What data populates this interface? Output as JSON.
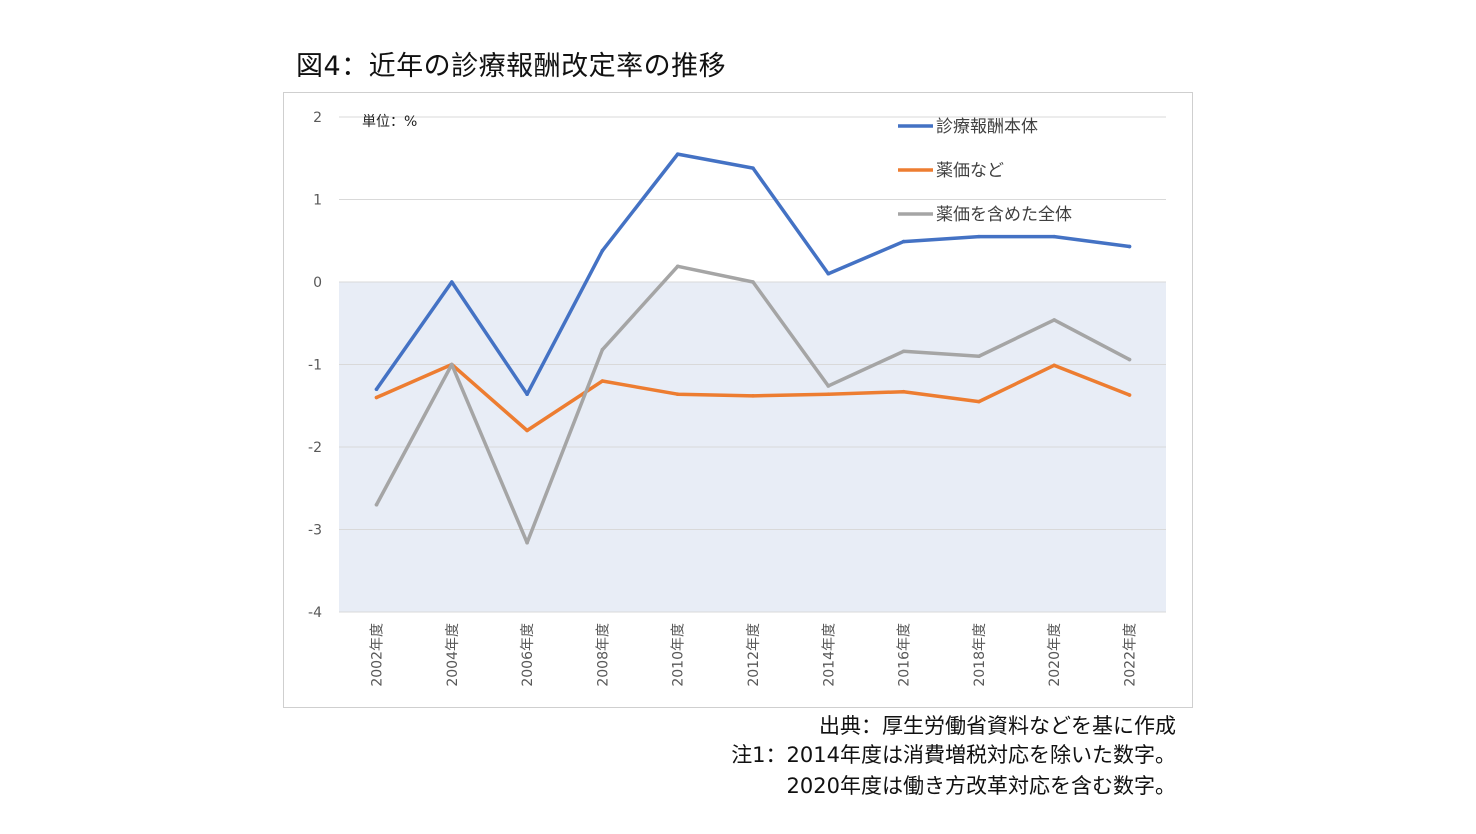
{
  "figure": {
    "title": "図4：近年の診療報酬改定率の推移",
    "source": "出典：厚生労働省資料などを基に作成",
    "note1": "注1：2014年度は消費増税対応を除いた数字。",
    "note2": "2020年度は働き方改革対応を含む数字。"
  },
  "chart_data": {
    "type": "line",
    "unit_label": "単位：%",
    "categories": [
      "2002年度",
      "2004年度",
      "2006年度",
      "2008年度",
      "2010年度",
      "2012年度",
      "2014年度",
      "2016年度",
      "2018年度",
      "2020年度",
      "2022年度"
    ],
    "ylim": [
      -4,
      2
    ],
    "yticks": [
      2,
      1,
      0,
      -1,
      -2,
      -3,
      -4
    ],
    "grid": true,
    "negative_region_shaded": true,
    "legend_position": "top-right",
    "series": [
      {
        "name": "診療報酬本体",
        "color": "#4472c4",
        "values": [
          -1.3,
          0.0,
          -1.36,
          0.38,
          1.55,
          1.38,
          0.1,
          0.49,
          0.55,
          0.55,
          0.43
        ]
      },
      {
        "name": "薬価など",
        "color": "#ed7d31",
        "values": [
          -1.4,
          -1.0,
          -1.8,
          -1.2,
          -1.36,
          -1.38,
          -1.36,
          -1.33,
          -1.45,
          -1.01,
          -1.37
        ]
      },
      {
        "name": "薬価を含めた全体",
        "color": "#a5a5a5",
        "values": [
          -2.7,
          -1.0,
          -3.16,
          -0.82,
          0.19,
          0.0,
          -1.26,
          -0.84,
          -0.9,
          -0.46,
          -0.94
        ]
      }
    ]
  }
}
